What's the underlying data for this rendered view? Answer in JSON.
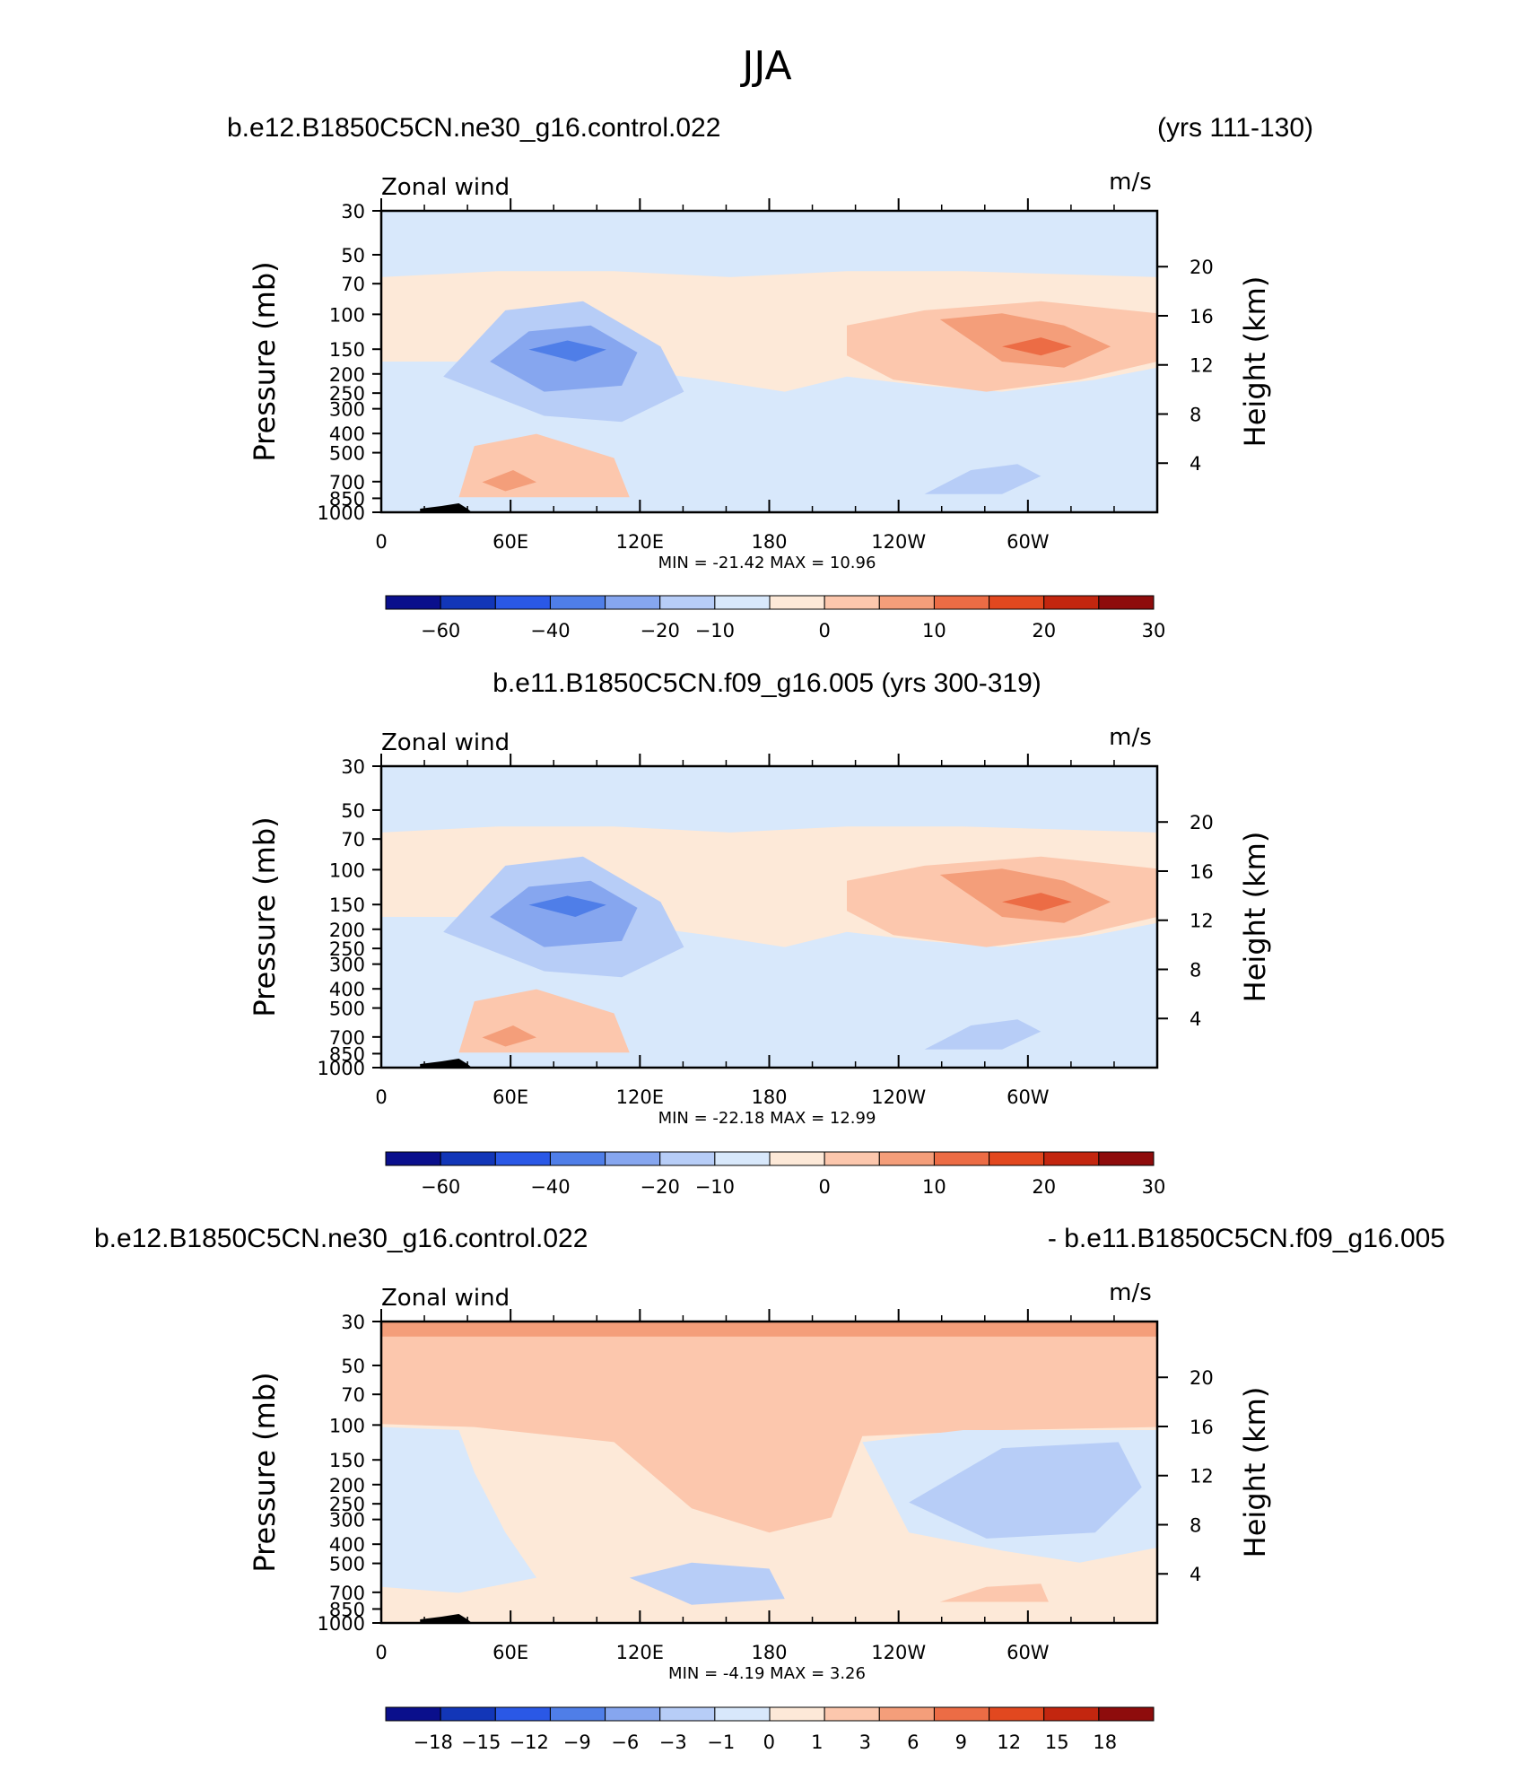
{
  "figure_title": "JJA",
  "colors": {
    "std_scale": [
      "#0a0f8c",
      "#1236b8",
      "#2a58e6",
      "#4f7ee8",
      "#86a6ef",
      "#b7cdf7",
      "#d8e8fb",
      "#fde9d8",
      "#fcc7ad",
      "#f49e7a",
      "#ec6c45",
      "#e2481f",
      "#c3260f",
      "#8e0c0c"
    ],
    "diff_scale": [
      "#0a0f8c",
      "#1236b8",
      "#2a58e6",
      "#4f7ee8",
      "#86a6ef",
      "#b7cdf7",
      "#d8e8fb",
      "#fde9d8",
      "#fcc7ad",
      "#f49e7a",
      "#ec6c45",
      "#e2481f",
      "#c3260f",
      "#8e0c0c"
    ]
  },
  "chart_data": [
    {
      "type": "heatmap",
      "title_left": "b.e12.B1850C5CN.ne30_g16.control.022",
      "title_right": "(yrs 111-130)",
      "title_center": "",
      "variable_label": "Zonal wind",
      "units": "m/s",
      "ylabel": "Pressure (mb)",
      "ylabel_right": "Height (km)",
      "x_ticks": [
        "0",
        "60E",
        "120E",
        "180",
        "120W",
        "60W"
      ],
      "y_ticks": [
        "30",
        "50",
        "70",
        "100",
        "150",
        "200",
        "250",
        "300",
        "400",
        "500",
        "700",
        "850",
        "1000"
      ],
      "y_ticks_right": [
        "20",
        "16",
        "12",
        "8",
        "4"
      ],
      "min_max_text": "MIN =  -21.42   MAX =   10.96",
      "min": -21.42,
      "max": 10.96,
      "colorbar_labels": [
        "-60",
        "-40",
        "-20",
        "-10",
        "0",
        "10",
        "20",
        "30"
      ],
      "features": [
        {
          "kind": "jet",
          "sign": "negative",
          "longitude": 75,
          "pressure": 150,
          "peak": -21.42
        },
        {
          "kind": "jet",
          "sign": "positive",
          "longitude": 300,
          "pressure": 150,
          "peak": 10.96
        }
      ]
    },
    {
      "type": "heatmap",
      "title_left": "",
      "title_right": "",
      "title_center": "b.e11.B1850C5CN.f09_g16.005 (yrs 300-319)",
      "variable_label": "Zonal wind",
      "units": "m/s",
      "ylabel": "Pressure (mb)",
      "ylabel_right": "Height (km)",
      "x_ticks": [
        "0",
        "60E",
        "120E",
        "180",
        "120W",
        "60W"
      ],
      "y_ticks": [
        "30",
        "50",
        "70",
        "100",
        "150",
        "200",
        "250",
        "300",
        "400",
        "500",
        "700",
        "850",
        "1000"
      ],
      "y_ticks_right": [
        "20",
        "16",
        "12",
        "8",
        "4"
      ],
      "min_max_text": "MIN =  -22.18   MAX =   12.99",
      "min": -22.18,
      "max": 12.99,
      "colorbar_labels": [
        "-60",
        "-40",
        "-20",
        "-10",
        "0",
        "10",
        "20",
        "30"
      ],
      "features": [
        {
          "kind": "jet",
          "sign": "negative",
          "longitude": 73,
          "pressure": 150,
          "peak": -22.18
        },
        {
          "kind": "jet",
          "sign": "positive",
          "longitude": 302,
          "pressure": 150,
          "peak": 12.99
        }
      ]
    },
    {
      "type": "heatmap",
      "title_left": "b.e12.B1850C5CN.ne30_g16.control.022",
      "title_right": "- b.e11.B1850C5CN.f09_g16.005",
      "title_center": "",
      "variable_label": "Zonal wind",
      "units": "m/s",
      "ylabel": "Pressure (mb)",
      "ylabel_right": "Height (km)",
      "x_ticks": [
        "0",
        "60E",
        "120E",
        "180",
        "120W",
        "60W"
      ],
      "y_ticks": [
        "30",
        "50",
        "70",
        "100",
        "150",
        "200",
        "250",
        "300",
        "400",
        "500",
        "700",
        "850",
        "1000"
      ],
      "y_ticks_right": [
        "20",
        "16",
        "12",
        "8",
        "4"
      ],
      "min_max_text": "MIN =   -4.19   MAX =    3.26",
      "min": -4.19,
      "max": 3.26,
      "colorbar_labels": [
        "-18",
        "-15",
        "-12",
        "-9",
        "-6",
        "-3",
        "-1",
        "0",
        "1",
        "3",
        "6",
        "9",
        "12",
        "15",
        "18"
      ],
      "features": [
        {
          "kind": "anomaly",
          "sign": "positive",
          "longitude": 150,
          "pressure": 100,
          "peak": 3.26
        },
        {
          "kind": "anomaly",
          "sign": "negative",
          "longitude": 305,
          "pressure": 150,
          "peak": -4.19
        }
      ]
    }
  ]
}
